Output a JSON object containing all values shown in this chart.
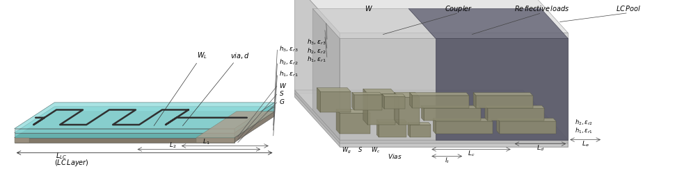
{
  "background_color": "#ffffff",
  "fig_width": 9.93,
  "fig_height": 2.55,
  "dpi": 100,
  "left": {
    "teal_light": "#7dd8d8",
    "teal_mid": "#5cc0c0",
    "teal_dark": "#4aacac",
    "gray_brown": "#8a8070",
    "meander_color": "#303030",
    "ground_gray": "#9a9080"
  },
  "right": {
    "outer_light": "#d0d0d0",
    "outer_mid": "#b8b8b8",
    "outer_dark": "#a0a0a0",
    "dark_region": "#555560",
    "dark_region_top": "#6a6a75",
    "pad_color": "#8a8870",
    "medium_gray": "#c0c0c0"
  }
}
